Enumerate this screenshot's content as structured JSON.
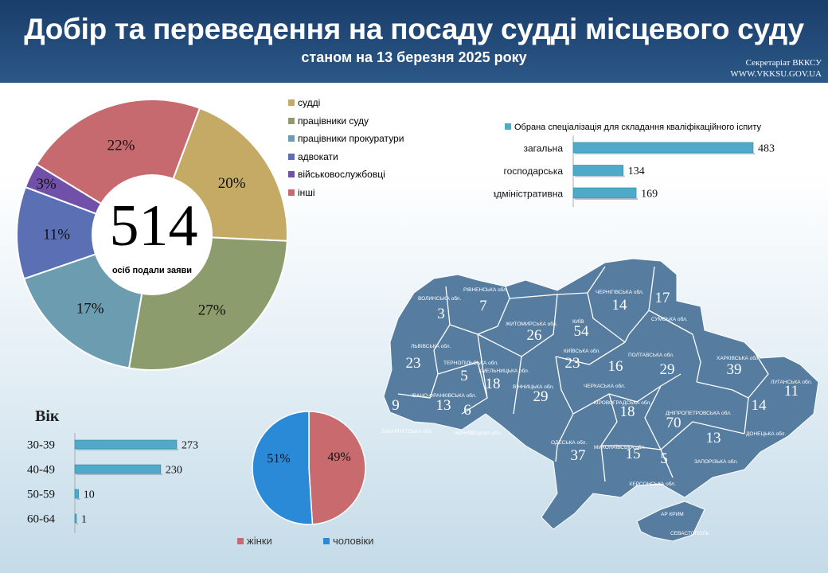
{
  "header": {
    "title": "Добір та переведення на посаду судді місцевого суду",
    "subtitle": "станом на 13 березня 2025 року",
    "credit_line1": "Секретаріат ВККСУ",
    "credit_line2": "WWW.VKKSU.GOV.UA"
  },
  "colors": {
    "judges": "#c4aa64",
    "court_staff": "#8c9c6c",
    "prosecutors": "#6b9cb0",
    "lawyers": "#5a6fb4",
    "military": "#7050a8",
    "others": "#c66a70",
    "bar": "#4eaac8",
    "women": "#c96a6e",
    "men": "#2a8ad8",
    "map": "#567da0"
  },
  "chart_data": [
    {
      "type": "pie",
      "center_value": "514",
      "center_label": "осіб подали заяви",
      "slices": [
        {
          "name": "судді",
          "value": 20,
          "label": "20%",
          "color_key": "judges"
        },
        {
          "name": "працівники суду",
          "value": 27,
          "label": "27%",
          "color_key": "court_staff"
        },
        {
          "name": "працівники прокуратури",
          "value": 17,
          "label": "17%",
          "color_key": "prosecutors"
        },
        {
          "name": "адвокати",
          "value": 11,
          "label": "11%",
          "color_key": "lawyers"
        },
        {
          "name": "військовослужбовці",
          "value": 3,
          "label": "3%",
          "color_key": "military"
        },
        {
          "name": "інші",
          "value": 22,
          "label": "22%",
          "color_key": "others"
        }
      ]
    },
    {
      "type": "bar",
      "orientation": "horizontal",
      "legend": "Обрана спеціалізація  для складання кваліфікаційного  іспиту",
      "categories": [
        "загальна",
        "господарська",
        "адміністративна"
      ],
      "values": [
        483,
        134,
        169
      ]
    },
    {
      "type": "bar",
      "orientation": "horizontal",
      "title": "Вік",
      "categories": [
        "30-39",
        "40-49",
        "50-59",
        "60-64"
      ],
      "values": [
        273,
        230,
        10,
        1
      ]
    },
    {
      "type": "pie",
      "slices": [
        {
          "name": "жінки",
          "value": 49,
          "label": "49%",
          "color_key": "women"
        },
        {
          "name": "чоловіки",
          "value": 51,
          "label": "51%",
          "color_key": "men"
        }
      ]
    }
  ],
  "map": {
    "regions": [
      {
        "name": "ВОЛИНСЬКА обл.",
        "value": "3"
      },
      {
        "name": "РІВНЕНСЬКА обл.",
        "value": "7"
      },
      {
        "name": "ЖИТОМИРСЬКА обл.",
        "value": "26"
      },
      {
        "name": "КИЇВ",
        "value": "54"
      },
      {
        "name": "ЧЕРНІГІВСЬКА обл.",
        "value": "14"
      },
      {
        "name": "СУМСЬКА обл.",
        "value": "17"
      },
      {
        "name": "ЛЬВІВСЬКА обл.",
        "value": "23"
      },
      {
        "name": "ТЕРНОПІЛЬСЬКА обл.",
        "value": "5"
      },
      {
        "name": "ХМЕЛЬНИЦЬКА обл.",
        "value": "18"
      },
      {
        "name": "КИЇВСЬКА обл.",
        "value": "23"
      },
      {
        "name": "ПОЛТАВСЬКА обл.",
        "value": "29"
      },
      {
        "name": "ХАРКІВСЬКА обл.",
        "value": "39"
      },
      {
        "name": "ЧЕРКАСЬКА обл.",
        "value": "16"
      },
      {
        "name": "ВІННИЦЬКА обл.",
        "value": "29"
      },
      {
        "name": "ІВАНО-ФРАНКІВСЬКА обл.",
        "value": "13"
      },
      {
        "name": "ЧЕРНІВЕЦЬКА обл.",
        "value": "6"
      },
      {
        "name": "ЗАКАРПАТСЬКА обл.",
        "value": "9"
      },
      {
        "name": "ЛУГАНСЬКА обл.",
        "value": "11"
      },
      {
        "name": "ДОНЕЦЬКА обл.",
        "value": "14"
      },
      {
        "name": "КІРОВОГРАДСЬКА обл.",
        "value": "18"
      },
      {
        "name": "ДНІПРОПЕТРОВСЬКА обл.",
        "value": "70"
      },
      {
        "name": "ОДЕСЬКА обл.",
        "value": "37"
      },
      {
        "name": "МИКОЛАЇВСЬКА обл.",
        "value": "15"
      },
      {
        "name": "ХЕРСОНСЬКА обл.",
        "value": "5"
      },
      {
        "name": "ЗАПОРІЗЬКА обл.",
        "value": "13"
      },
      {
        "name": "АР КРИМ",
        "value": ""
      },
      {
        "name": "СЕВАСТОПОЛЬ",
        "value": ""
      }
    ]
  }
}
